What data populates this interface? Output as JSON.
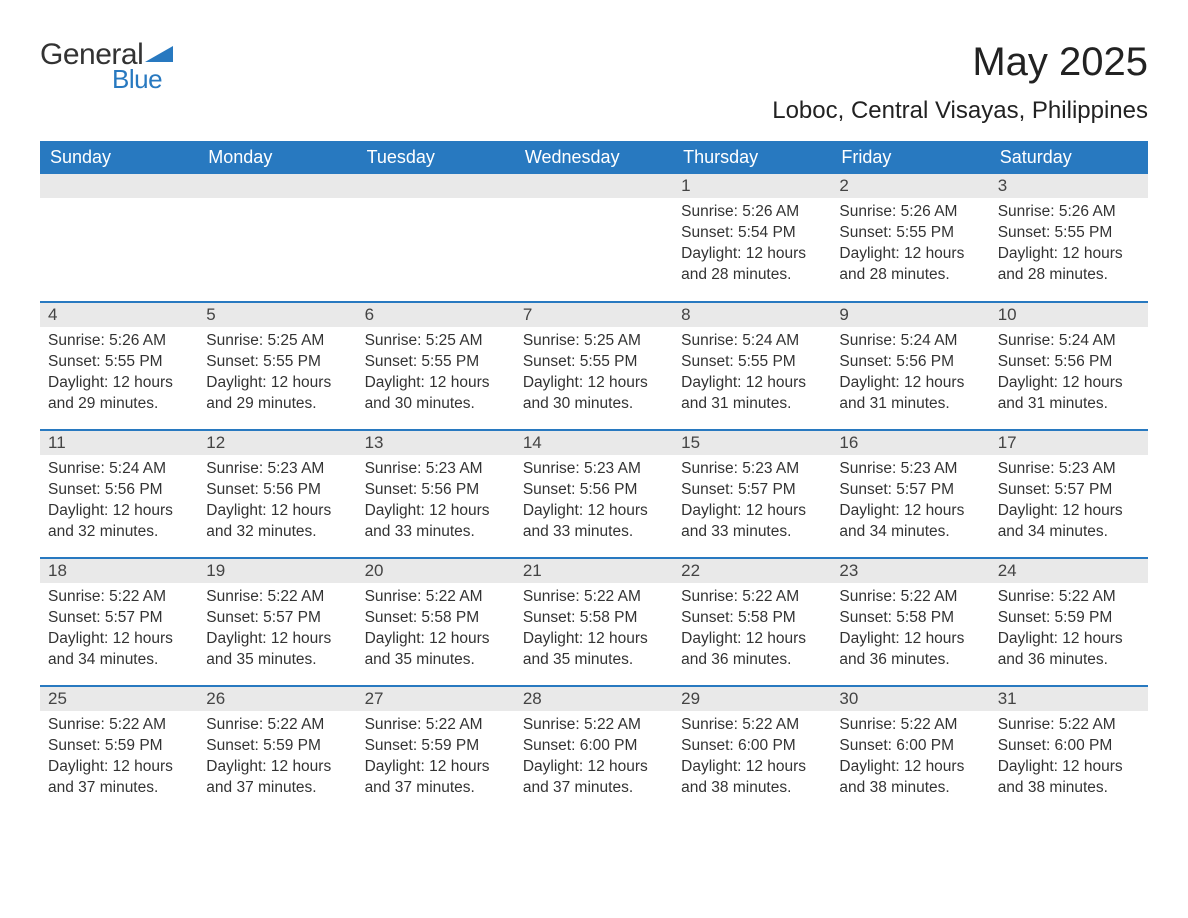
{
  "logo": {
    "text1": "General",
    "text2": "Blue",
    "tri_color": "#2879c0"
  },
  "title": "May 2025",
  "location": "Loboc, Central Visayas, Philippines",
  "colors": {
    "header_bg": "#2879c0",
    "header_text": "#ffffff",
    "daynum_bg": "#e9e9e9",
    "row_border": "#2879c0",
    "body_text": "#333333",
    "background": "#ffffff"
  },
  "fonts": {
    "title_size": 40,
    "location_size": 24,
    "th_size": 18,
    "daynum_size": 17,
    "cell_size": 15.5
  },
  "weekdays": [
    "Sunday",
    "Monday",
    "Tuesday",
    "Wednesday",
    "Thursday",
    "Friday",
    "Saturday"
  ],
  "weeks": [
    [
      null,
      null,
      null,
      null,
      {
        "n": "1",
        "sunrise": "5:26 AM",
        "sunset": "5:54 PM",
        "daylight": "12 hours and 28 minutes."
      },
      {
        "n": "2",
        "sunrise": "5:26 AM",
        "sunset": "5:55 PM",
        "daylight": "12 hours and 28 minutes."
      },
      {
        "n": "3",
        "sunrise": "5:26 AM",
        "sunset": "5:55 PM",
        "daylight": "12 hours and 28 minutes."
      }
    ],
    [
      {
        "n": "4",
        "sunrise": "5:26 AM",
        "sunset": "5:55 PM",
        "daylight": "12 hours and 29 minutes."
      },
      {
        "n": "5",
        "sunrise": "5:25 AM",
        "sunset": "5:55 PM",
        "daylight": "12 hours and 29 minutes."
      },
      {
        "n": "6",
        "sunrise": "5:25 AM",
        "sunset": "5:55 PM",
        "daylight": "12 hours and 30 minutes."
      },
      {
        "n": "7",
        "sunrise": "5:25 AM",
        "sunset": "5:55 PM",
        "daylight": "12 hours and 30 minutes."
      },
      {
        "n": "8",
        "sunrise": "5:24 AM",
        "sunset": "5:55 PM",
        "daylight": "12 hours and 31 minutes."
      },
      {
        "n": "9",
        "sunrise": "5:24 AM",
        "sunset": "5:56 PM",
        "daylight": "12 hours and 31 minutes."
      },
      {
        "n": "10",
        "sunrise": "5:24 AM",
        "sunset": "5:56 PM",
        "daylight": "12 hours and 31 minutes."
      }
    ],
    [
      {
        "n": "11",
        "sunrise": "5:24 AM",
        "sunset": "5:56 PM",
        "daylight": "12 hours and 32 minutes."
      },
      {
        "n": "12",
        "sunrise": "5:23 AM",
        "sunset": "5:56 PM",
        "daylight": "12 hours and 32 minutes."
      },
      {
        "n": "13",
        "sunrise": "5:23 AM",
        "sunset": "5:56 PM",
        "daylight": "12 hours and 33 minutes."
      },
      {
        "n": "14",
        "sunrise": "5:23 AM",
        "sunset": "5:56 PM",
        "daylight": "12 hours and 33 minutes."
      },
      {
        "n": "15",
        "sunrise": "5:23 AM",
        "sunset": "5:57 PM",
        "daylight": "12 hours and 33 minutes."
      },
      {
        "n": "16",
        "sunrise": "5:23 AM",
        "sunset": "5:57 PM",
        "daylight": "12 hours and 34 minutes."
      },
      {
        "n": "17",
        "sunrise": "5:23 AM",
        "sunset": "5:57 PM",
        "daylight": "12 hours and 34 minutes."
      }
    ],
    [
      {
        "n": "18",
        "sunrise": "5:22 AM",
        "sunset": "5:57 PM",
        "daylight": "12 hours and 34 minutes."
      },
      {
        "n": "19",
        "sunrise": "5:22 AM",
        "sunset": "5:57 PM",
        "daylight": "12 hours and 35 minutes."
      },
      {
        "n": "20",
        "sunrise": "5:22 AM",
        "sunset": "5:58 PM",
        "daylight": "12 hours and 35 minutes."
      },
      {
        "n": "21",
        "sunrise": "5:22 AM",
        "sunset": "5:58 PM",
        "daylight": "12 hours and 35 minutes."
      },
      {
        "n": "22",
        "sunrise": "5:22 AM",
        "sunset": "5:58 PM",
        "daylight": "12 hours and 36 minutes."
      },
      {
        "n": "23",
        "sunrise": "5:22 AM",
        "sunset": "5:58 PM",
        "daylight": "12 hours and 36 minutes."
      },
      {
        "n": "24",
        "sunrise": "5:22 AM",
        "sunset": "5:59 PM",
        "daylight": "12 hours and 36 minutes."
      }
    ],
    [
      {
        "n": "25",
        "sunrise": "5:22 AM",
        "sunset": "5:59 PM",
        "daylight": "12 hours and 37 minutes."
      },
      {
        "n": "26",
        "sunrise": "5:22 AM",
        "sunset": "5:59 PM",
        "daylight": "12 hours and 37 minutes."
      },
      {
        "n": "27",
        "sunrise": "5:22 AM",
        "sunset": "5:59 PM",
        "daylight": "12 hours and 37 minutes."
      },
      {
        "n": "28",
        "sunrise": "5:22 AM",
        "sunset": "6:00 PM",
        "daylight": "12 hours and 37 minutes."
      },
      {
        "n": "29",
        "sunrise": "5:22 AM",
        "sunset": "6:00 PM",
        "daylight": "12 hours and 38 minutes."
      },
      {
        "n": "30",
        "sunrise": "5:22 AM",
        "sunset": "6:00 PM",
        "daylight": "12 hours and 38 minutes."
      },
      {
        "n": "31",
        "sunrise": "5:22 AM",
        "sunset": "6:00 PM",
        "daylight": "12 hours and 38 minutes."
      }
    ]
  ],
  "labels": {
    "sunrise": "Sunrise: ",
    "sunset": "Sunset: ",
    "daylight": "Daylight: "
  }
}
